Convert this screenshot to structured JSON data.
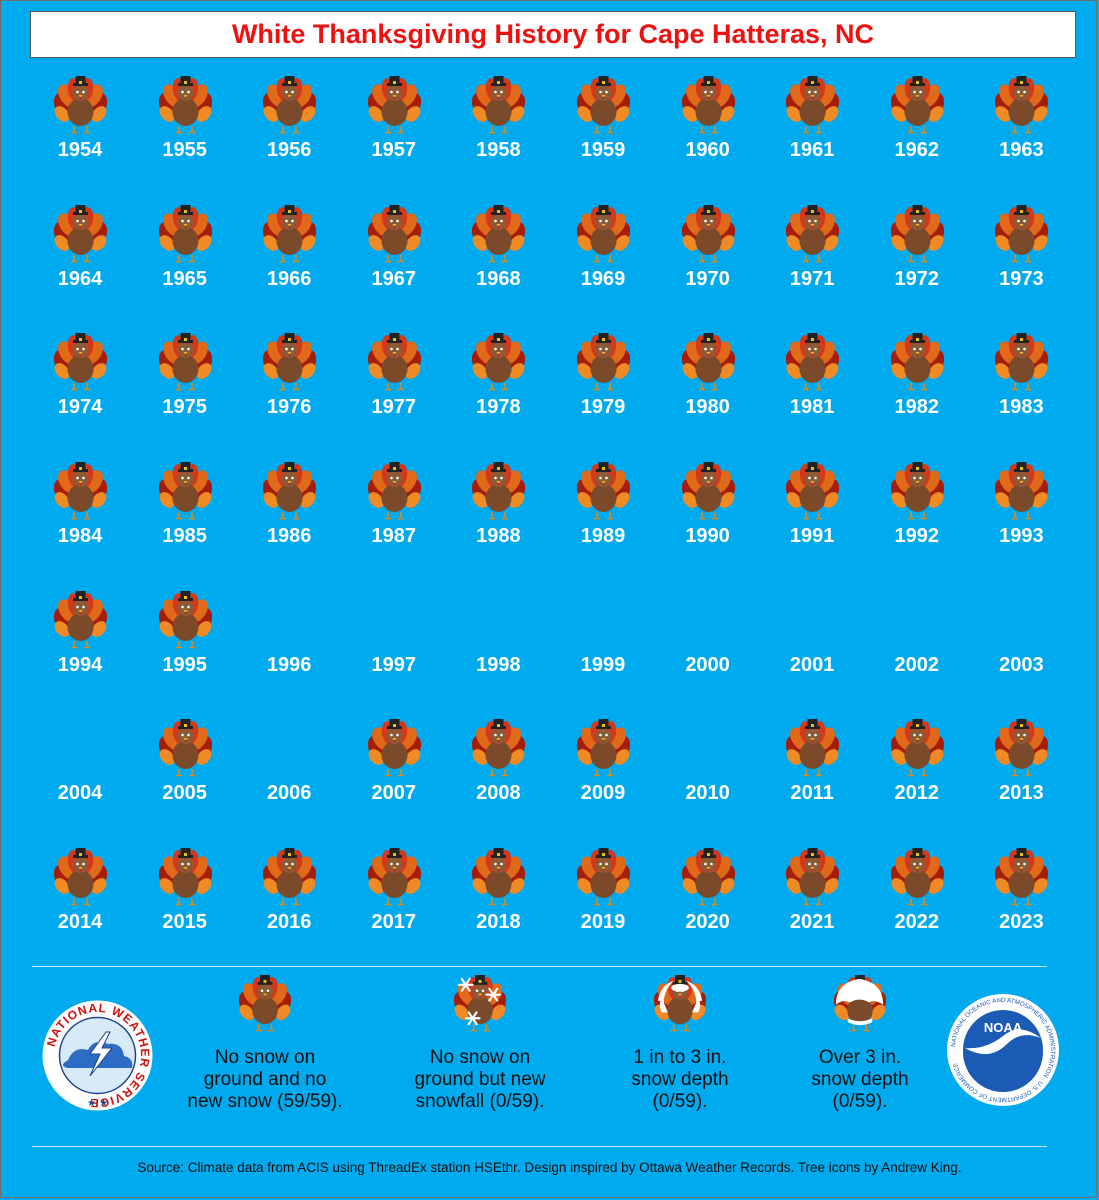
{
  "title": "White Thanksgiving History for Cape Hatteras, NC",
  "chart_data": {
    "type": "table",
    "title": "White Thanksgiving History for Cape Hatteras, NC",
    "categories_legend": [
      "No snow on ground and no new snow (59/59).",
      "No snow on ground but new snowfall (0/59).",
      "1 in to 3 in. snow depth (0/59).",
      "Over 3 in. snow depth (0/59)."
    ],
    "years": [
      {
        "year": "1954",
        "category": "none"
      },
      {
        "year": "1955",
        "category": "none"
      },
      {
        "year": "1956",
        "category": "none"
      },
      {
        "year": "1957",
        "category": "none"
      },
      {
        "year": "1958",
        "category": "none"
      },
      {
        "year": "1959",
        "category": "none"
      },
      {
        "year": "1960",
        "category": "none"
      },
      {
        "year": "1961",
        "category": "none"
      },
      {
        "year": "1962",
        "category": "none"
      },
      {
        "year": "1963",
        "category": "none"
      },
      {
        "year": "1964",
        "category": "none"
      },
      {
        "year": "1965",
        "category": "none"
      },
      {
        "year": "1966",
        "category": "none"
      },
      {
        "year": "1967",
        "category": "none"
      },
      {
        "year": "1968",
        "category": "none"
      },
      {
        "year": "1969",
        "category": "none"
      },
      {
        "year": "1970",
        "category": "none"
      },
      {
        "year": "1971",
        "category": "none"
      },
      {
        "year": "1972",
        "category": "none"
      },
      {
        "year": "1973",
        "category": "none"
      },
      {
        "year": "1974",
        "category": "none"
      },
      {
        "year": "1975",
        "category": "none"
      },
      {
        "year": "1976",
        "category": "none"
      },
      {
        "year": "1977",
        "category": "none"
      },
      {
        "year": "1978",
        "category": "none"
      },
      {
        "year": "1979",
        "category": "none"
      },
      {
        "year": "1980",
        "category": "none"
      },
      {
        "year": "1981",
        "category": "none"
      },
      {
        "year": "1982",
        "category": "none"
      },
      {
        "year": "1983",
        "category": "none"
      },
      {
        "year": "1984",
        "category": "none"
      },
      {
        "year": "1985",
        "category": "none"
      },
      {
        "year": "1986",
        "category": "none"
      },
      {
        "year": "1987",
        "category": "none"
      },
      {
        "year": "1988",
        "category": "none"
      },
      {
        "year": "1989",
        "category": "none"
      },
      {
        "year": "1990",
        "category": "none"
      },
      {
        "year": "1991",
        "category": "none"
      },
      {
        "year": "1992",
        "category": "none"
      },
      {
        "year": "1993",
        "category": "none"
      },
      {
        "year": "1994",
        "category": "none"
      },
      {
        "year": "1995",
        "category": "none"
      },
      {
        "year": "1996",
        "category": "missing"
      },
      {
        "year": "1997",
        "category": "missing"
      },
      {
        "year": "1998",
        "category": "missing"
      },
      {
        "year": "1999",
        "category": "missing"
      },
      {
        "year": "2000",
        "category": "missing"
      },
      {
        "year": "2001",
        "category": "missing"
      },
      {
        "year": "2002",
        "category": "missing"
      },
      {
        "year": "2003",
        "category": "missing"
      },
      {
        "year": "2004",
        "category": "missing"
      },
      {
        "year": "2005",
        "category": "none"
      },
      {
        "year": "2006",
        "category": "missing"
      },
      {
        "year": "2007",
        "category": "none"
      },
      {
        "year": "2008",
        "category": "none"
      },
      {
        "year": "2009",
        "category": "none"
      },
      {
        "year": "2010",
        "category": "missing"
      },
      {
        "year": "2011",
        "category": "none"
      },
      {
        "year": "2012",
        "category": "none"
      },
      {
        "year": "2013",
        "category": "none"
      },
      {
        "year": "2014",
        "category": "none"
      },
      {
        "year": "2015",
        "category": "none"
      },
      {
        "year": "2016",
        "category": "none"
      },
      {
        "year": "2017",
        "category": "none"
      },
      {
        "year": "2018",
        "category": "none"
      },
      {
        "year": "2019",
        "category": "none"
      },
      {
        "year": "2020",
        "category": "none"
      },
      {
        "year": "2021",
        "category": "none"
      },
      {
        "year": "2022",
        "category": "none"
      },
      {
        "year": "2023",
        "category": "none"
      }
    ]
  },
  "legend": {
    "items": [
      {
        "label": "No snow on\nground and no\nnew snow (59/59).",
        "icon": "turkey-icon"
      },
      {
        "label": "No snow on\nground but new\nsnowfall (0/59).",
        "icon": "turkey-snowflake-icon"
      },
      {
        "label": "1 in to 3 in.\nsnow depth\n(0/59).",
        "icon": "snowy-turkey-icon"
      },
      {
        "label": "Over 3 in.\nsnow depth\n(0/59).",
        "icon": "snow-covered-turkey-icon"
      }
    ]
  },
  "logos": {
    "nws": {
      "text": "NATIONAL WEATHER SERVICE"
    },
    "noaa": {
      "text": "NOAA",
      "ring_text": "NATIONAL OCEANIC AND ATMOSPHERIC ADMINISTRATION · U.S. DEPARTMENT OF COMMERCE"
    }
  },
  "source": "Source: Climate data from ACIS using ThreadEx station HSEthr. Design inspired by Ottawa Weather Records. Tree icons by Andrew King.",
  "colors": {
    "background": "#00aaee",
    "title": "#ee1111",
    "year_text": "#ffffff"
  }
}
